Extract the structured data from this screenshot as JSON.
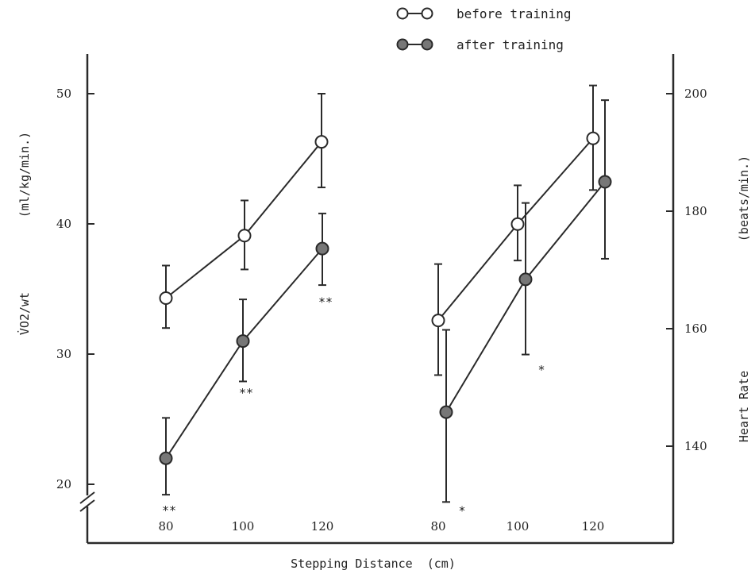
{
  "chart_data": {
    "type": "line",
    "xlabel": "Stepping Distance  (cm)",
    "legend": {
      "placement": "top-center",
      "entries": [
        {
          "label": "before training",
          "marker": "open-circle"
        },
        {
          "label": "after training",
          "marker": "filled-circle"
        }
      ]
    },
    "panels": [
      {
        "name": "oxygen-uptake",
        "ylabel": "V̇O2/wt",
        "yunit": "(ml/kg/min.)",
        "y_axis_side": "left",
        "ylim": [
          13,
          60
        ],
        "yticks": [
          20,
          30,
          40,
          50
        ],
        "axis_break": true,
        "x_ticks": [
          "80",
          "100",
          "120"
        ],
        "series": [
          {
            "name": "before training",
            "marker": "open-circle",
            "x": [
              80,
              100,
              120
            ],
            "y": [
              34.3,
              39.1,
              46.3
            ],
            "err_low": [
              32.0,
              36.5,
              42.8
            ],
            "err_high": [
              36.8,
              41.8,
              50.0
            ]
          },
          {
            "name": "after training",
            "marker": "filled-circle",
            "x": [
              80,
              100,
              120
            ],
            "y": [
              22.0,
              31.0,
              38.1
            ],
            "err_low": [
              19.2,
              27.9,
              35.3
            ],
            "err_high": [
              25.1,
              34.2,
              40.8
            ]
          }
        ],
        "annotations": [
          {
            "x": 80,
            "y": 18,
            "text": "**"
          },
          {
            "x": 100,
            "y": 27,
            "text": "**"
          },
          {
            "x": 120,
            "y": 34,
            "text": "**"
          }
        ]
      },
      {
        "name": "heart-rate",
        "ylabel": "Heart Rate",
        "yunit": "(beats/min.)",
        "y_axis_side": "right",
        "ylim": [
          126,
          220
        ],
        "yticks": [
          140,
          160,
          180,
          200
        ],
        "x_ticks": [
          "80",
          "100",
          "120"
        ],
        "series": [
          {
            "name": "before training",
            "marker": "open-circle",
            "x": [
              80,
              100,
              120
            ],
            "y": [
              161.4,
              177.8,
              192.4
            ],
            "err_low": [
              152.1,
              171.6,
              183.6
            ],
            "err_high": [
              171.0,
              184.4,
              201.4
            ]
          },
          {
            "name": "after training",
            "marker": "filled-circle",
            "x": [
              80,
              100,
              120
            ],
            "y": [
              145.8,
              168.4,
              185.0
            ],
            "err_low": [
              130.5,
              155.6,
              171.9
            ],
            "err_high": [
              159.8,
              181.4,
              198.9
            ]
          }
        ],
        "annotations": [
          {
            "x": 80,
            "y": 129,
            "text": "*"
          },
          {
            "x": 100,
            "y": 153,
            "text": "*"
          }
        ]
      }
    ]
  },
  "style": {
    "ink": "#2a2a2a",
    "marker_fill_after": "#777777",
    "marker_fill_before": "#ffffff"
  }
}
